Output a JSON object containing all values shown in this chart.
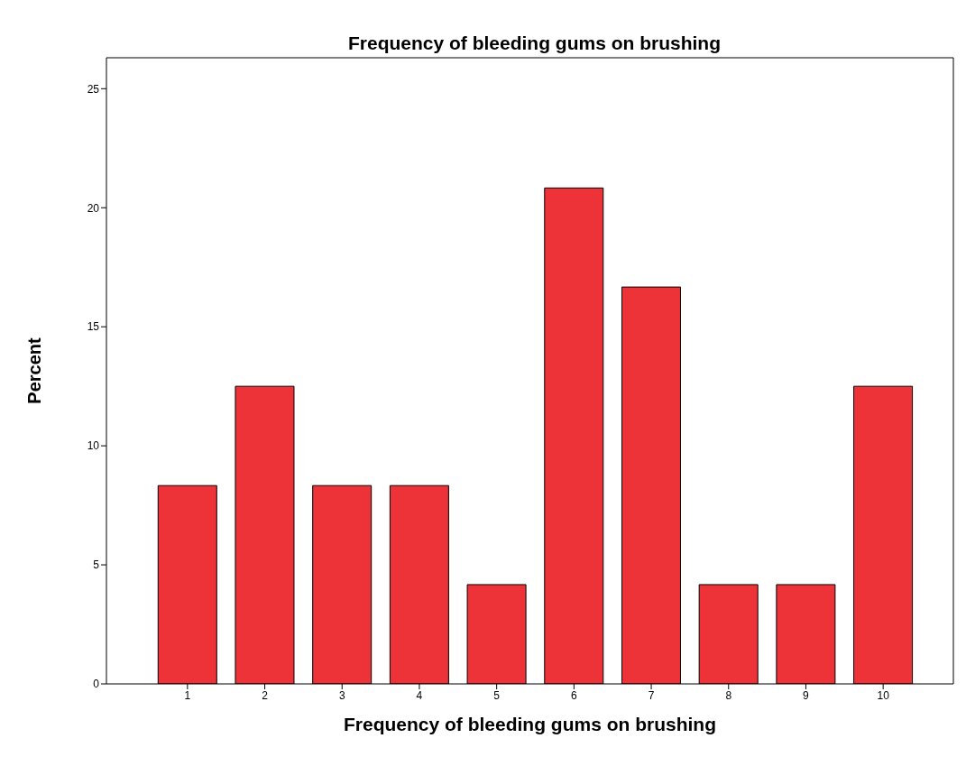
{
  "chart_data": {
    "type": "bar",
    "title": "Frequency of bleeding gums on brushing",
    "xlabel": "Frequency of bleeding gums on brushing",
    "ylabel": "Percent",
    "categories": [
      "1",
      "2",
      "3",
      "4",
      "5",
      "6",
      "7",
      "8",
      "9",
      "10"
    ],
    "values": [
      8.33,
      12.5,
      8.33,
      8.33,
      4.17,
      20.83,
      16.67,
      4.17,
      4.17,
      12.5
    ],
    "color": "#ee3338",
    "ylim": [
      0,
      26.3
    ],
    "yticks": [
      0,
      5,
      10,
      15,
      20,
      25
    ]
  }
}
